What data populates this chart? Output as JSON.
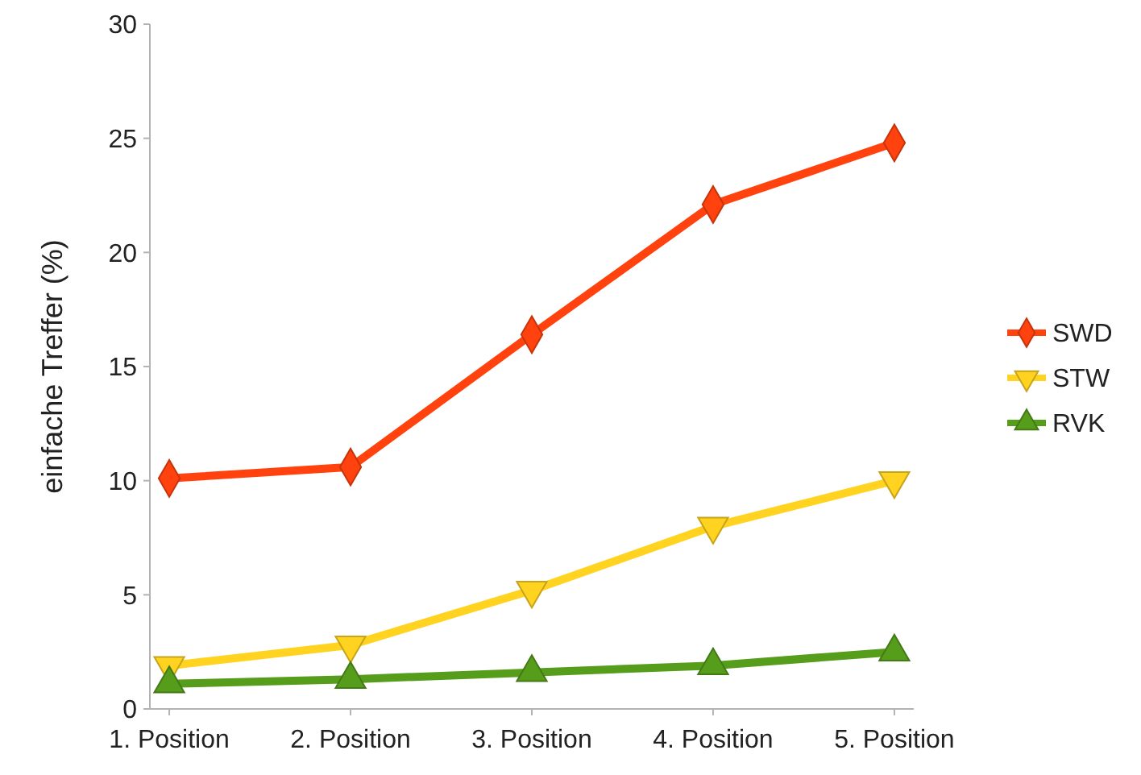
{
  "chart_data": {
    "type": "line",
    "ylabel": "einfache Treffer (%)",
    "categories": [
      "1. Position",
      "2. Position",
      "3. Position",
      "4. Position",
      "5. Position"
    ],
    "series": [
      {
        "name": "SWD",
        "color": "#ff420e",
        "marker": "diamond",
        "values": [
          10.1,
          10.6,
          16.4,
          22.1,
          24.8
        ]
      },
      {
        "name": "STW",
        "color": "#ffd320",
        "marker": "triangle-down",
        "values": [
          1.9,
          2.8,
          5.2,
          8.0,
          10.0
        ]
      },
      {
        "name": "RVK",
        "color": "#579d1c",
        "marker": "triangle",
        "values": [
          1.1,
          1.3,
          1.6,
          1.9,
          2.5
        ]
      }
    ],
    "ylim": [
      0,
      30
    ],
    "yticks": [
      0,
      5,
      10,
      15,
      20,
      25,
      30
    ],
    "grid": false,
    "legend": "right",
    "line_style": "solid"
  }
}
